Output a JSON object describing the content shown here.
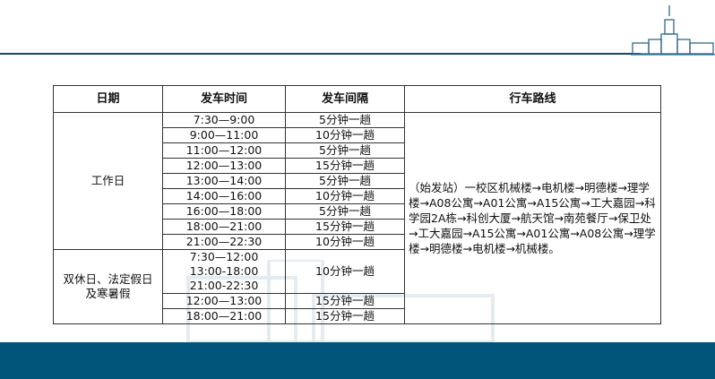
{
  "headers": [
    "日期",
    "发车时间",
    "发车间隔",
    "行车路线"
  ],
  "workday": {
    "label": "工作日",
    "rows": [
      {
        "time": "7:30—9:00",
        "interval": "5分钟一趟"
      },
      {
        "time": "9:00—11:00",
        "interval": "10分钟一趟"
      },
      {
        "time": "11:00—12:00",
        "interval": "5分钟一趟"
      },
      {
        "time": "12:00—13:00",
        "interval": "15分钟一趟"
      },
      {
        "time": "13:00—14:00",
        "interval": "5分钟一趟"
      },
      {
        "time": "14:00—16:00",
        "interval": "10分钟一趟"
      },
      {
        "time": "16:00—18:00",
        "interval": "5分钟一趟"
      },
      {
        "time": "18:00—21:00",
        "interval": "15分钟一趟"
      },
      {
        "time": "21:00—22:30",
        "interval": "10分钟一趟"
      }
    ]
  },
  "holiday": {
    "label_line1": "双休日、法定假日",
    "label_line2": "及寒暑假",
    "group_times": [
      "7:30—12:00",
      "13:00-18:00",
      "21:00-22:30"
    ],
    "group_interval": "10分钟一趟",
    "rows": [
      {
        "time": "12:00—13:00",
        "interval": "15分钟一趟"
      },
      {
        "time": "18:00—21:00",
        "interval": "15分钟一趟"
      }
    ]
  },
  "route": "（始发站）一校区机械楼→电机楼→明德楼→理学楼→A08公寓→A01公寓→A15公寓→工大嘉园→科学园2A栋→科创大厦→航天馆→南苑餐厅→保卫处→工大嘉园→A15公寓→A01公寓→A08公寓→理学楼→明德楼→电机楼→机械楼。",
  "colors": {
    "header_line": "#17496b",
    "footer": "#02557a"
  }
}
